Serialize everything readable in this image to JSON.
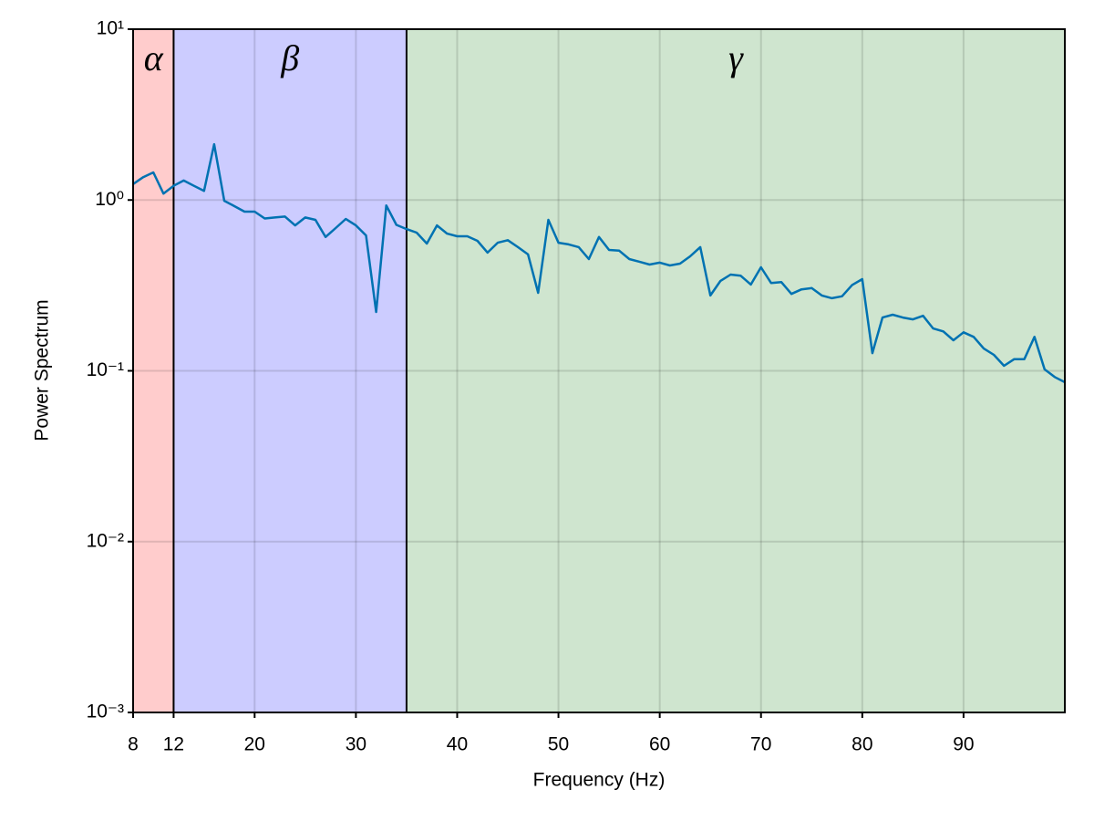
{
  "chart_data": {
    "type": "line",
    "xlabel": "Frequency (Hz)",
    "ylabel": "Power Spectrum",
    "x": [
      8,
      9,
      10,
      11,
      12,
      13,
      14,
      15,
      16,
      17,
      18,
      19,
      20,
      21,
      22,
      23,
      24,
      25,
      26,
      27,
      28,
      29,
      30,
      31,
      32,
      33,
      34,
      35,
      36,
      37,
      38,
      39,
      40,
      41,
      42,
      43,
      44,
      45,
      46,
      47,
      48,
      49,
      50,
      51,
      52,
      53,
      54,
      55,
      56,
      57,
      58,
      59,
      60,
      61,
      62,
      63,
      64,
      65,
      66,
      67,
      68,
      69,
      70,
      71,
      72,
      73,
      74,
      75,
      76,
      77,
      78,
      79,
      80,
      81,
      82,
      83,
      84,
      85,
      86,
      87,
      88,
      89,
      90,
      91,
      92,
      93,
      94,
      95,
      96,
      97,
      98,
      99,
      100
    ],
    "series": [
      {
        "color": "#0072b2",
        "values": [
          1.24,
          1.36,
          1.45,
          1.09,
          1.21,
          1.3,
          1.21,
          1.13,
          2.12,
          0.99,
          0.92,
          0.855,
          0.855,
          0.78,
          0.79,
          0.8,
          0.71,
          0.79,
          0.765,
          0.607,
          0.685,
          0.775,
          0.71,
          0.62,
          0.221,
          0.93,
          0.715,
          0.676,
          0.644,
          0.556,
          0.71,
          0.636,
          0.613,
          0.613,
          0.577,
          0.492,
          0.562,
          0.582,
          0.53,
          0.48,
          0.286,
          0.765,
          0.562,
          0.55,
          0.53,
          0.451,
          0.607,
          0.51,
          0.505,
          0.451,
          0.435,
          0.419,
          0.43,
          0.414,
          0.424,
          0.468,
          0.53,
          0.276,
          0.336,
          0.366,
          0.36,
          0.32,
          0.404,
          0.327,
          0.331,
          0.282,
          0.3,
          0.305,
          0.276,
          0.266,
          0.273,
          0.318,
          0.344,
          0.127,
          0.205,
          0.213,
          0.205,
          0.2,
          0.21,
          0.177,
          0.17,
          0.151,
          0.168,
          0.158,
          0.135,
          0.124,
          0.107,
          0.117,
          0.117,
          0.158,
          0.102,
          0.092,
          0.0857
        ]
      }
    ],
    "bands": [
      {
        "label": "α",
        "start": 8,
        "end": 12,
        "color": "#ffcccc"
      },
      {
        "label": "β",
        "start": 12,
        "end": 35,
        "color": "#ccccff"
      },
      {
        "label": "γ",
        "start": 35,
        "end": 100,
        "color": "#cfe5cf"
      }
    ],
    "xlim": [
      8,
      100
    ],
    "xticks": [
      8,
      12,
      20,
      30,
      40,
      50,
      60,
      70,
      80,
      90
    ],
    "ylim": [
      0.001,
      10
    ],
    "log_y": true,
    "yticks": [
      {
        "value": 0.001,
        "label": "10⁻³"
      },
      {
        "value": 0.01,
        "label": "10⁻²"
      },
      {
        "value": 0.1,
        "label": "10⁻¹"
      },
      {
        "value": 1,
        "label": "10⁰"
      },
      {
        "value": 10,
        "label": "10¹"
      }
    ],
    "grid": true
  }
}
